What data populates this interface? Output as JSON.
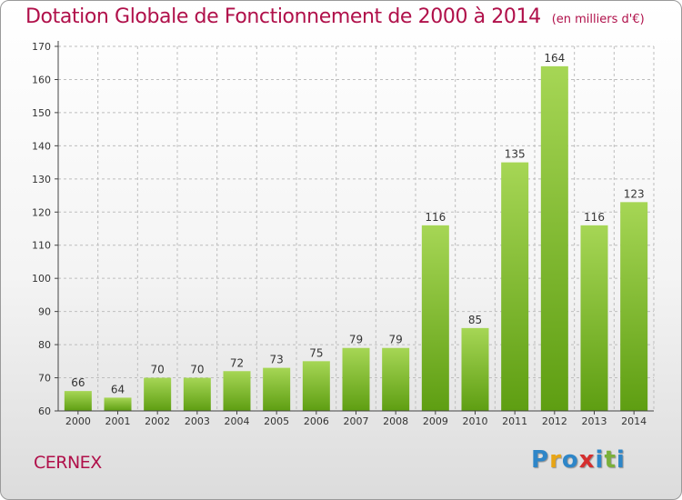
{
  "header": {
    "title": "Dotation Globale de Fonctionnement de 2000 à 2014",
    "unit": "(en milliers d'€)"
  },
  "footer": {
    "city": "CERNEX",
    "brand_letters": [
      "P",
      "r",
      "o",
      "x",
      "i",
      "t",
      "i"
    ],
    "brand_colors": [
      "#2e86c8",
      "#e8a516",
      "#2e86c8",
      "#d52f2f",
      "#2e86c8",
      "#7ab03a",
      "#2e86c8"
    ]
  },
  "colors": {
    "title": "#b0104a",
    "bar_light": "#a6d655",
    "bar_dark": "#5e9e12",
    "grid": "#bdbdbd",
    "axis": "#444444"
  },
  "chart_data": {
    "type": "bar",
    "categories": [
      "2000",
      "2001",
      "2002",
      "2003",
      "2004",
      "2005",
      "2006",
      "2007",
      "2008",
      "2009",
      "2010",
      "2011",
      "2012",
      "2013",
      "2014"
    ],
    "values": [
      66,
      64,
      70,
      70,
      72,
      73,
      75,
      79,
      79,
      116,
      85,
      135,
      164,
      116,
      123
    ],
    "data_labels": [
      "66",
      "64",
      "70",
      "70",
      "72",
      "73",
      "75",
      "79",
      "79",
      "116",
      "85",
      "135",
      "164",
      "116",
      "123"
    ],
    "yticks": [
      60,
      70,
      80,
      90,
      100,
      110,
      120,
      130,
      140,
      150,
      160,
      170
    ],
    "ytick_labels": [
      "60",
      "70",
      "80",
      "90",
      "100",
      "110",
      "120",
      "130",
      "140",
      "150",
      "160",
      "170"
    ],
    "ylim": [
      60,
      170
    ],
    "grid": true,
    "legend": "none"
  }
}
